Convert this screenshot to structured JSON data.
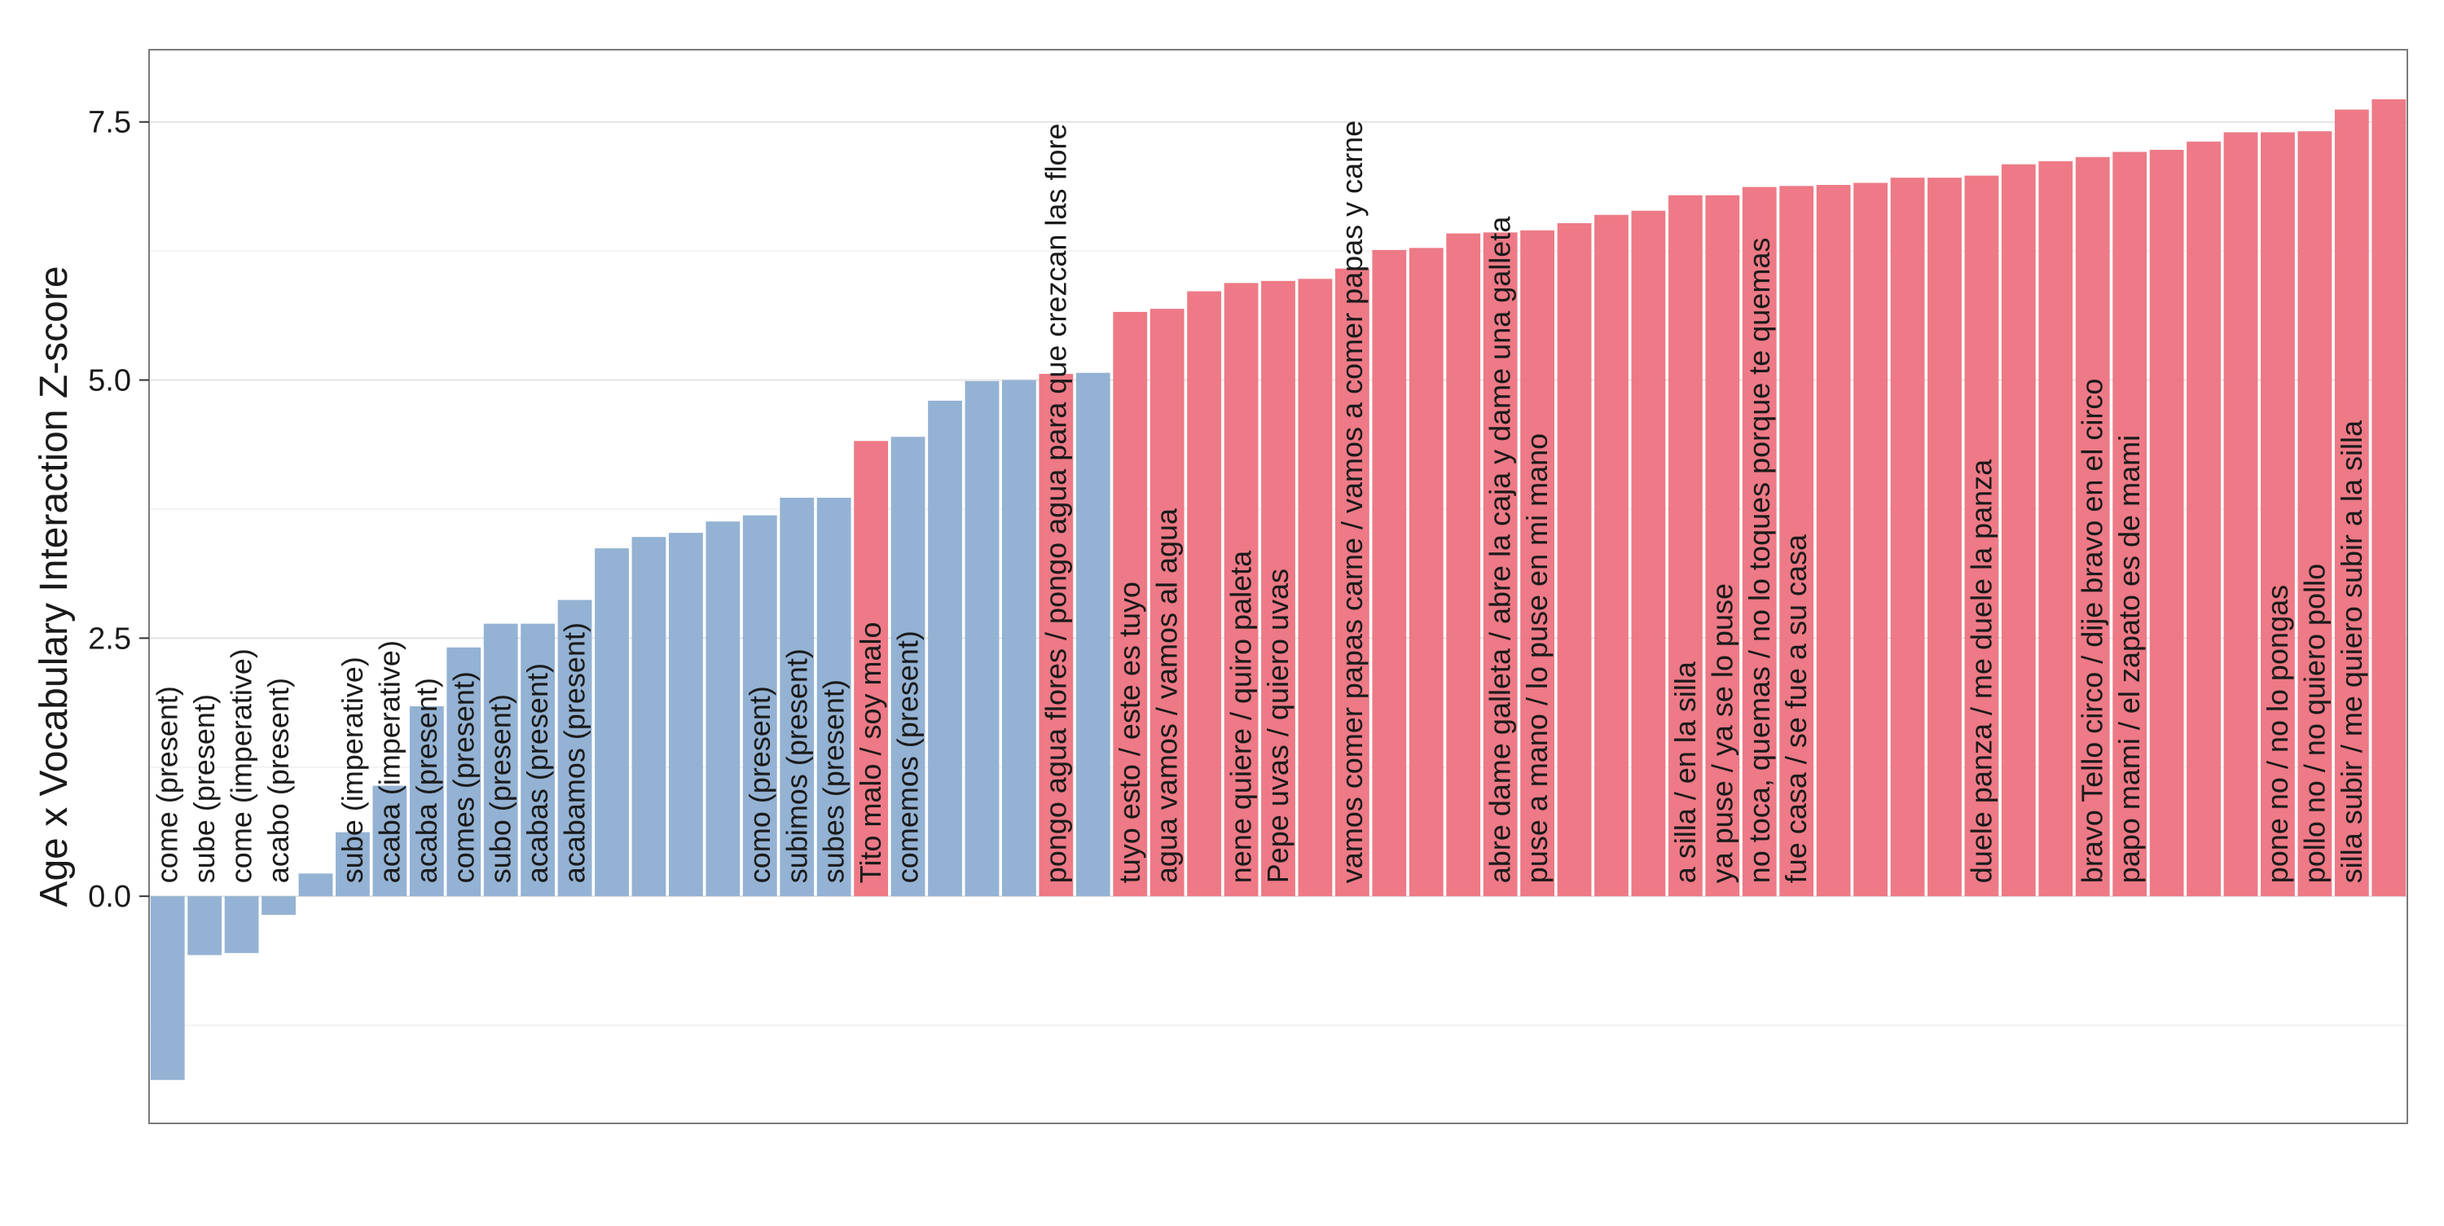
{
  "chart_data": {
    "type": "bar",
    "title": "",
    "xlabel": "",
    "ylabel": "Age x Vocabulary Interaction Z-score",
    "ylim": [
      -2.2,
      8.2
    ],
    "yticks": [
      "0.0",
      "2.5",
      "5.0",
      "7.5"
    ],
    "grid": true,
    "legend": "none",
    "colors": {
      "blue": "#8eaed1",
      "red": "#ec737f"
    },
    "bars": [
      {
        "value": -1.78,
        "group": "blue",
        "label": "come (present)"
      },
      {
        "value": -0.57,
        "group": "blue",
        "label": "sube (present)"
      },
      {
        "value": -0.55,
        "group": "blue",
        "label": "come (imperative)"
      },
      {
        "value": -0.18,
        "group": "blue",
        "label": "acabo (present)"
      },
      {
        "value": 0.22,
        "group": "blue",
        "label": ""
      },
      {
        "value": 0.62,
        "group": "blue",
        "label": "sube (imperative)"
      },
      {
        "value": 1.07,
        "group": "blue",
        "label": "acaba (imperative)"
      },
      {
        "value": 1.84,
        "group": "blue",
        "label": "acaba (present)"
      },
      {
        "value": 2.41,
        "group": "blue",
        "label": "comes (present)"
      },
      {
        "value": 2.64,
        "group": "blue",
        "label": "subo (present)"
      },
      {
        "value": 2.64,
        "group": "blue",
        "label": "acabas (present)"
      },
      {
        "value": 2.87,
        "group": "blue",
        "label": "acabamos (present)"
      },
      {
        "value": 3.37,
        "group": "blue",
        "label": ""
      },
      {
        "value": 3.48,
        "group": "blue",
        "label": ""
      },
      {
        "value": 3.52,
        "group": "blue",
        "label": ""
      },
      {
        "value": 3.63,
        "group": "blue",
        "label": ""
      },
      {
        "value": 3.69,
        "group": "blue",
        "label": "como (present)"
      },
      {
        "value": 3.86,
        "group": "blue",
        "label": "subimos (present)"
      },
      {
        "value": 3.86,
        "group": "blue",
        "label": "subes (present)"
      },
      {
        "value": 4.41,
        "group": "red",
        "label": "Tito malo / soy malo"
      },
      {
        "value": 4.45,
        "group": "blue",
        "label": "comemos (present)"
      },
      {
        "value": 4.8,
        "group": "blue",
        "label": ""
      },
      {
        "value": 4.99,
        "group": "blue",
        "label": ""
      },
      {
        "value": 5.0,
        "group": "blue",
        "label": ""
      },
      {
        "value": 5.06,
        "group": "red",
        "label": "pongo agua flores / pongo agua para que crezcan las flore"
      },
      {
        "value": 5.07,
        "group": "blue",
        "label": ""
      },
      {
        "value": 5.66,
        "group": "red",
        "label": "tuyo esto / este es tuyo"
      },
      {
        "value": 5.69,
        "group": "red",
        "label": "agua vamos / vamos al agua"
      },
      {
        "value": 5.86,
        "group": "red",
        "label": ""
      },
      {
        "value": 5.94,
        "group": "red",
        "label": "nene quiere / quiro paleta"
      },
      {
        "value": 5.96,
        "group": "red",
        "label": "Pepe uvas / quiero uvas"
      },
      {
        "value": 5.98,
        "group": "red",
        "label": ""
      },
      {
        "value": 6.08,
        "group": "red",
        "label": "vamos comer papas carne / vamos a comer papas y carne"
      },
      {
        "value": 6.26,
        "group": "red",
        "label": ""
      },
      {
        "value": 6.28,
        "group": "red",
        "label": ""
      },
      {
        "value": 6.42,
        "group": "red",
        "label": ""
      },
      {
        "value": 6.43,
        "group": "red",
        "label": "abre dame galleta / abre la caja y dame una galleta"
      },
      {
        "value": 6.45,
        "group": "red",
        "label": "puse a mano / lo puse en mi mano"
      },
      {
        "value": 6.52,
        "group": "red",
        "label": ""
      },
      {
        "value": 6.6,
        "group": "red",
        "label": ""
      },
      {
        "value": 6.64,
        "group": "red",
        "label": ""
      },
      {
        "value": 6.79,
        "group": "red",
        "label": "a silla / en la silla"
      },
      {
        "value": 6.79,
        "group": "red",
        "label": "ya puse / ya se lo puse"
      },
      {
        "value": 6.87,
        "group": "red",
        "label": "no toca, quemas / no lo toques porque te quemas"
      },
      {
        "value": 6.88,
        "group": "red",
        "label": "fue casa / se fue a su casa"
      },
      {
        "value": 6.89,
        "group": "red",
        "label": ""
      },
      {
        "value": 6.91,
        "group": "red",
        "label": ""
      },
      {
        "value": 6.96,
        "group": "red",
        "label": ""
      },
      {
        "value": 6.96,
        "group": "red",
        "label": ""
      },
      {
        "value": 6.98,
        "group": "red",
        "label": "duele panza / me duele la panza"
      },
      {
        "value": 7.09,
        "group": "red",
        "label": ""
      },
      {
        "value": 7.12,
        "group": "red",
        "label": ""
      },
      {
        "value": 7.16,
        "group": "red",
        "label": "bravo Tello circo / dije bravo en el circo"
      },
      {
        "value": 7.21,
        "group": "red",
        "label": "papo mami / el zapato es de mami"
      },
      {
        "value": 7.23,
        "group": "red",
        "label": ""
      },
      {
        "value": 7.31,
        "group": "red",
        "label": ""
      },
      {
        "value": 7.4,
        "group": "red",
        "label": ""
      },
      {
        "value": 7.4,
        "group": "red",
        "label": "pone no / no lo pongas"
      },
      {
        "value": 7.41,
        "group": "red",
        "label": "pollo no / no quiero pollo"
      },
      {
        "value": 7.62,
        "group": "red",
        "label": "silla subir / me quiero subir a la silla"
      },
      {
        "value": 7.72,
        "group": "red",
        "label": ""
      }
    ]
  }
}
